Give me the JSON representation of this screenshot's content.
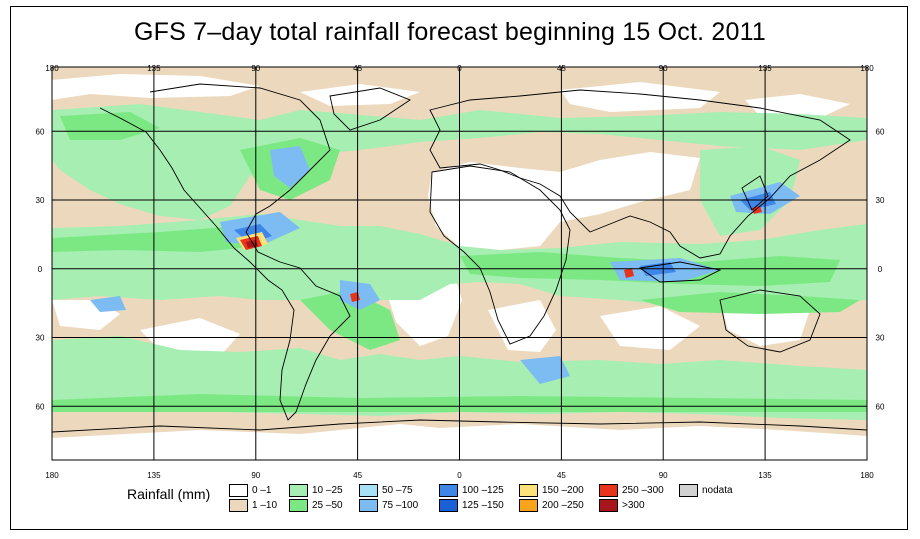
{
  "title": "GFS 7–day total rainfall forecast beginning 15 Oct. 2011",
  "map": {
    "projection": "equirectangular",
    "lon_ticks": [
      "180",
      "135",
      "90",
      "45",
      "0",
      "45",
      "90",
      "135",
      "180"
    ],
    "lat_ticks": [
      "60",
      "30",
      "0",
      "30",
      "60"
    ],
    "grid": true
  },
  "legend": {
    "title": "Rainfall (mm)",
    "items": [
      {
        "label": "0 –1",
        "color": "#ffffff"
      },
      {
        "label": "1 –10",
        "color": "#ecd9bd"
      },
      {
        "label": "10 –25",
        "color": "#a6eeb1"
      },
      {
        "label": "25 –50",
        "color": "#7ce884"
      },
      {
        "label": "50 –75",
        "color": "#a7e1f5"
      },
      {
        "label": "75 –100",
        "color": "#7cbcf2"
      },
      {
        "label": "100 –125",
        "color": "#3e86e8"
      },
      {
        "label": "125 –150",
        "color": "#1a60d6"
      },
      {
        "label": "150 –200",
        "color": "#fde27a"
      },
      {
        "label": "200 –250",
        "color": "#f9a41a"
      },
      {
        "label": "250 –300",
        "color": "#e8341b"
      },
      {
        "label": ">300",
        "color": "#a8151a"
      },
      {
        "label": "nodata",
        "color": "#d2d2d2"
      }
    ]
  }
}
